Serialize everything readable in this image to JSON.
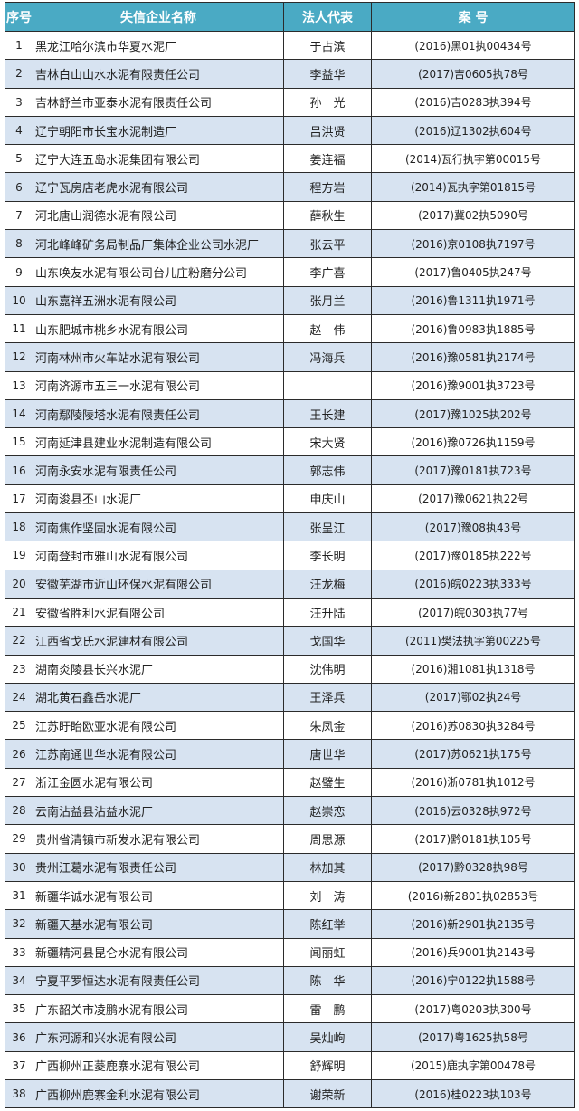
{
  "header": {
    "no": "序号",
    "name": "失信企业名称",
    "rep": "法人代表",
    "case": "案  号"
  },
  "colors": {
    "header_bg": "#4aaac4",
    "alt_row_bg": "#d7e3f1",
    "border": "#2b2b2b"
  },
  "rows": [
    {
      "no": "1",
      "name": "黑龙江哈尔滨市华夏水泥厂",
      "rep": "于占滨",
      "case": "(2016)黑01执00434号"
    },
    {
      "no": "2",
      "name": "吉林白山山水水泥有限责任公司",
      "rep": "李益华",
      "case": "(2017)吉0605执78号"
    },
    {
      "no": "3",
      "name": "吉林舒兰市亚泰水泥有限责任公司",
      "rep": "孙　光",
      "case": "(2016)吉0283执394号"
    },
    {
      "no": "4",
      "name": "辽宁朝阳市长宝水泥制造厂",
      "rep": "吕洪贤",
      "case": "(2016)辽1302执604号"
    },
    {
      "no": "5",
      "name": "辽宁大连五岛水泥集团有限公司",
      "rep": "姜连福",
      "case": "(2014)瓦行执字第00015号"
    },
    {
      "no": "6",
      "name": "辽宁瓦房店老虎水泥有限公司",
      "rep": "程方岩",
      "case": "(2014)瓦执字第01815号"
    },
    {
      "no": "7",
      "name": "河北唐山润德水泥有限公司",
      "rep": "薛秋生",
      "case": "(2017)冀02执5090号"
    },
    {
      "no": "8",
      "name": "河北峰峰矿务局制品厂集体企业公司水泥厂",
      "rep": "张云平",
      "case": "(2016)京0108执7197号"
    },
    {
      "no": "9",
      "name": "山东唤友水泥有限公司台儿庄粉磨分公司",
      "rep": "李广喜",
      "case": "(2017)鲁0405执247号"
    },
    {
      "no": "10",
      "name": "山东嘉祥五洲水泥有限公司",
      "rep": "张月兰",
      "case": "(2016)鲁1311执1971号"
    },
    {
      "no": "11",
      "name": "山东肥城市桃乡水泥有限公司",
      "rep": "赵　伟",
      "case": "(2016)鲁0983执1885号"
    },
    {
      "no": "12",
      "name": "河南林州市火车站水泥有限公司",
      "rep": "冯海兵",
      "case": "(2016)豫0581执2174号"
    },
    {
      "no": "13",
      "name": "河南济源市五三一水泥有限公司",
      "rep": "",
      "case": "(2016)豫9001执3723号"
    },
    {
      "no": "14",
      "name": "河南鄢陵陵塔水泥有限责任公司",
      "rep": "王长建",
      "case": "(2017)豫1025执202号"
    },
    {
      "no": "15",
      "name": "河南延津县建业水泥制造有限公司",
      "rep": "宋大贤",
      "case": "(2016)豫0726执1159号"
    },
    {
      "no": "16",
      "name": "河南永安水泥有限责任公司",
      "rep": "郭志伟",
      "case": "(2017)豫0181执723号"
    },
    {
      "no": "17",
      "name": "河南浚县丕山水泥厂",
      "rep": "申庆山",
      "case": "(2017)豫0621执22号"
    },
    {
      "no": "18",
      "name": "河南焦作坚固水泥有限公司",
      "rep": "张呈江",
      "case": "(2017)豫08执43号"
    },
    {
      "no": "19",
      "name": "河南登封市雅山水泥有限公司",
      "rep": "李长明",
      "case": "(2017)豫0185执222号"
    },
    {
      "no": "20",
      "name": "安徽芜湖市近山环保水泥有限公司",
      "rep": "汪龙梅",
      "case": "(2016)皖0223执333号"
    },
    {
      "no": "21",
      "name": "安徽省胜利水泥有限公司",
      "rep": "汪升陆",
      "case": "(2017)皖0303执77号"
    },
    {
      "no": "22",
      "name": "江西省戈氏水泥建材有限公司",
      "rep": "戈国华",
      "case": "(2011)樊法执字第00225号"
    },
    {
      "no": "23",
      "name": "湖南炎陵县长兴水泥厂",
      "rep": "沈伟明",
      "case": "(2016)湘1081执1318号"
    },
    {
      "no": "24",
      "name": "湖北黄石鑫岳水泥厂",
      "rep": "王泽兵",
      "case": "(2017)鄂02执24号"
    },
    {
      "no": "25",
      "name": "江苏盱眙欧亚水泥有限公司",
      "rep": "朱凤金",
      "case": "(2016)苏0830执3284号"
    },
    {
      "no": "26",
      "name": "江苏南通世华水泥有限公司",
      "rep": "唐世华",
      "case": "(2017)苏0621执175号"
    },
    {
      "no": "27",
      "name": "浙江金圆水泥有限公司",
      "rep": "赵璧生",
      "case": "(2016)浙0781执1012号"
    },
    {
      "no": "28",
      "name": "云南沾益县沾益水泥厂",
      "rep": "赵崇恋",
      "case": "(2016)云0328执972号"
    },
    {
      "no": "29",
      "name": "贵州省清镇市新发水泥有限公司",
      "rep": "周思源",
      "case": "(2017)黔0181执105号"
    },
    {
      "no": "30",
      "name": "贵州江葛水泥有限责任公司",
      "rep": "林加其",
      "case": "(2017)黔0328执98号"
    },
    {
      "no": "31",
      "name": "新疆华诚水泥有限公司",
      "rep": "刘　涛",
      "case": "(2016)新2801执02853号"
    },
    {
      "no": "32",
      "name": "新疆天基水泥有限公司",
      "rep": "陈红举",
      "case": "(2016)新2901执2135号"
    },
    {
      "no": "33",
      "name": "新疆精河县昆仑水泥有限公司",
      "rep": "闻丽虹",
      "case": "(2016)兵9001执2143号"
    },
    {
      "no": "34",
      "name": "宁夏平罗恒达水泥有限责任公司",
      "rep": "陈　华",
      "case": "(2016)宁0122执1588号"
    },
    {
      "no": "35",
      "name": "广东韶关市凌鹏水泥有限公司",
      "rep": "雷　鹏",
      "case": "(2017)粤0203执300号"
    },
    {
      "no": "36",
      "name": "广东河源和兴水泥有限公司",
      "rep": "吴灿岣",
      "case": "(2017)粤1625执58号"
    },
    {
      "no": "37",
      "name": "广西柳州正菱鹿寨水泥有限公司",
      "rep": "舒辉明",
      "case": "(2015)鹿执字第00478号"
    },
    {
      "no": "38",
      "name": "广西柳州鹿寨金利水泥有限公司",
      "rep": "谢荣新",
      "case": "(2016)桂0223执103号"
    }
  ]
}
